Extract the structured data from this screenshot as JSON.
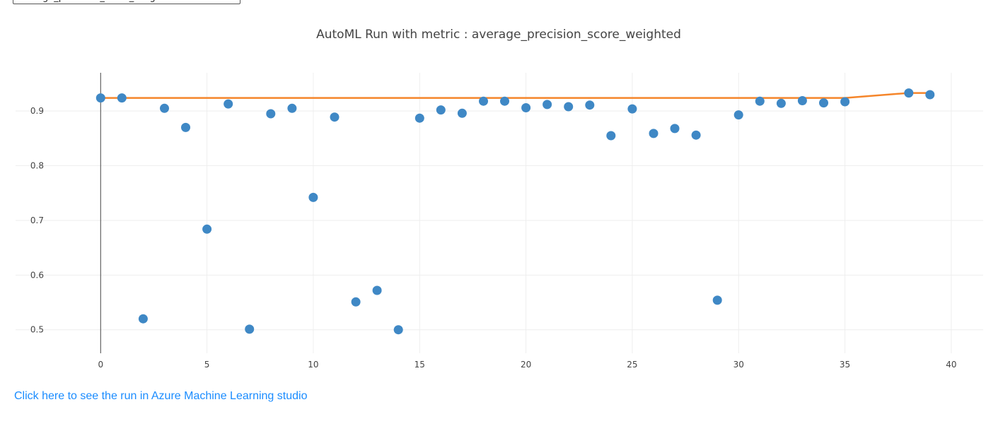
{
  "metric_select": {
    "value": "average_precision_score_weighted"
  },
  "link": {
    "text": "Click here to see the run in Azure Machine Learning studio"
  },
  "colors": {
    "points": "#3f88c5",
    "best_line": "#f5852a",
    "grid": "#eeeeee",
    "axis_zero": "#444444"
  },
  "chart_data": {
    "type": "scatter",
    "title": "AutoML Run with metric : average_precision_score_weighted",
    "xlabel": "",
    "ylabel": "",
    "xlim": [
      -4,
      41.5
    ],
    "ylim": [
      0.457,
      0.97
    ],
    "x_ticks": [
      0,
      5,
      10,
      15,
      20,
      25,
      30,
      35,
      40
    ],
    "y_ticks": [
      0.5,
      0.6,
      0.7,
      0.8,
      0.9
    ],
    "y_tick_labels": [
      "0.5",
      "0.6",
      "0.7",
      "0.8",
      "0.9"
    ],
    "grid": true,
    "series": [
      {
        "mode": "markers",
        "x": [
          0,
          1,
          2,
          3,
          4,
          5,
          6,
          7,
          8,
          9,
          10,
          11,
          12,
          13,
          14,
          15,
          16,
          17,
          18,
          19,
          20,
          21,
          22,
          23,
          24,
          25,
          26,
          27,
          28,
          29,
          30,
          31,
          32,
          33,
          34,
          35,
          38,
          39
        ],
        "y": [
          0.924,
          0.924,
          0.52,
          0.905,
          0.87,
          0.684,
          0.913,
          0.501,
          0.895,
          0.905,
          0.742,
          0.889,
          0.551,
          0.572,
          0.5,
          0.887,
          0.902,
          0.896,
          0.918,
          0.918,
          0.906,
          0.912,
          0.908,
          0.911,
          0.855,
          0.904,
          0.859,
          0.868,
          0.856,
          0.554,
          0.893,
          0.918,
          0.914,
          0.919,
          0.915,
          0.917,
          0.933,
          0.93
        ]
      },
      {
        "mode": "lines",
        "x": [
          0,
          1,
          2,
          3,
          4,
          5,
          6,
          7,
          8,
          9,
          10,
          11,
          12,
          13,
          14,
          15,
          16,
          17,
          18,
          19,
          20,
          21,
          22,
          23,
          24,
          25,
          26,
          27,
          28,
          29,
          30,
          31,
          32,
          33,
          34,
          35,
          38,
          39
        ],
        "y": [
          0.924,
          0.924,
          0.924,
          0.924,
          0.924,
          0.924,
          0.924,
          0.924,
          0.924,
          0.924,
          0.924,
          0.924,
          0.924,
          0.924,
          0.924,
          0.924,
          0.924,
          0.924,
          0.924,
          0.924,
          0.924,
          0.924,
          0.924,
          0.924,
          0.924,
          0.924,
          0.924,
          0.924,
          0.924,
          0.924,
          0.924,
          0.924,
          0.924,
          0.924,
          0.924,
          0.924,
          0.933,
          0.933
        ]
      }
    ]
  }
}
